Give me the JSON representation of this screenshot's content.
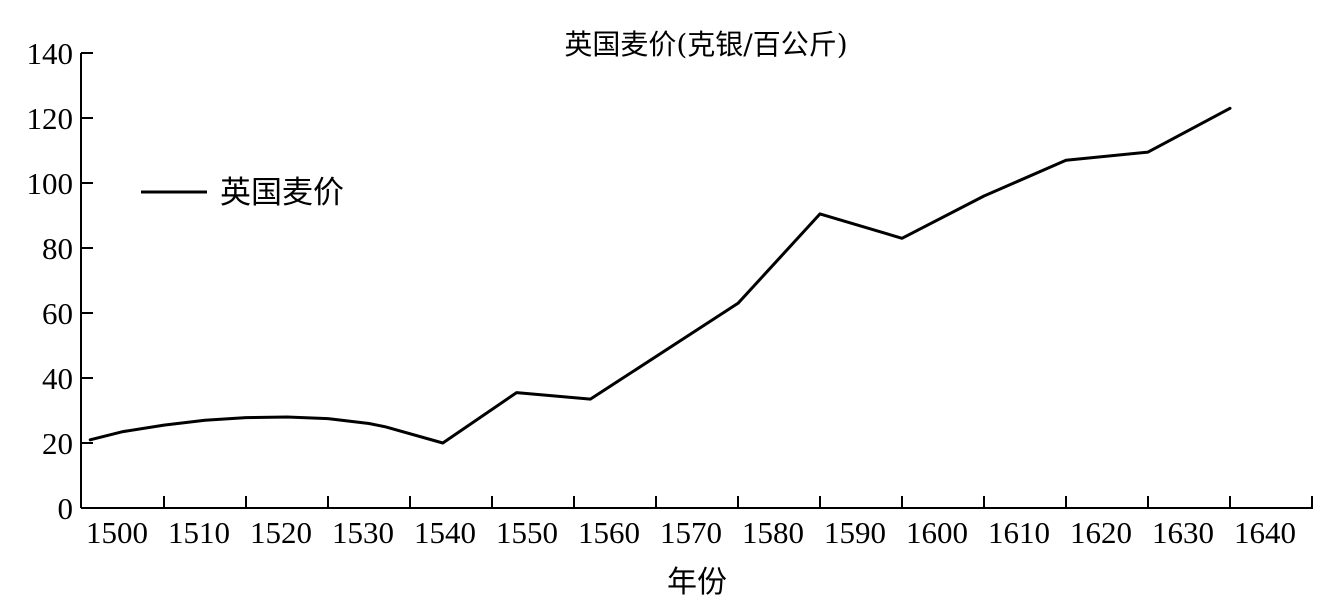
{
  "chart_data": {
    "type": "line",
    "title": "英国麦价(克银/百公斤)",
    "xlabel": "年份",
    "ylabel": "",
    "x_ticks": [
      "1500",
      "1510",
      "1520",
      "1530",
      "1540",
      "1550",
      "1560",
      "1570",
      "1580",
      "1590",
      "1600",
      "1610",
      "1620",
      "1630",
      "1640"
    ],
    "y_ticks": [
      "0",
      "20",
      "40",
      "60",
      "80",
      "100",
      "120",
      "140"
    ],
    "xlim": [
      1500,
      1645
    ],
    "ylim": [
      0,
      140
    ],
    "legend_position": "left",
    "grid": false,
    "line_color": "#000000",
    "series": [
      {
        "name": "英国麦价",
        "points": [
          {
            "x": 1501,
            "y": 21
          },
          {
            "x": 1505,
            "y": 23.5
          },
          {
            "x": 1510,
            "y": 25.5
          },
          {
            "x": 1515,
            "y": 27
          },
          {
            "x": 1520,
            "y": 27.8
          },
          {
            "x": 1525,
            "y": 28
          },
          {
            "x": 1530,
            "y": 27.5
          },
          {
            "x": 1535,
            "y": 26
          },
          {
            "x": 1537,
            "y": 25
          },
          {
            "x": 1544,
            "y": 20
          },
          {
            "x": 1553,
            "y": 35.5
          },
          {
            "x": 1562,
            "y": 33.5
          },
          {
            "x": 1580,
            "y": 63
          },
          {
            "x": 1590,
            "y": 90.5
          },
          {
            "x": 1600,
            "y": 83
          },
          {
            "x": 1610,
            "y": 96
          },
          {
            "x": 1620,
            "y": 107
          },
          {
            "x": 1630,
            "y": 109.5
          },
          {
            "x": 1640,
            "y": 123
          }
        ]
      }
    ]
  }
}
